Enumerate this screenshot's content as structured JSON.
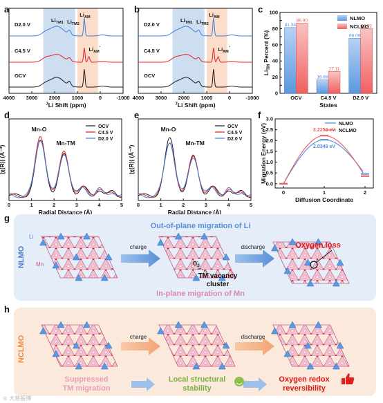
{
  "colors": {
    "nlmo": "#4a8fe0",
    "nclmo": "#f05a5a",
    "ocv": "#1a1a1a",
    "c45": "#e02020",
    "d20": "#3a7fe0",
    "panel_g_bg": "#e4edf8",
    "panel_h_bg": "#fbe9dc",
    "shade_blue": "#c5d8ef",
    "shade_orange": "#fad7c0"
  },
  "panels": {
    "a": "a",
    "b": "b",
    "c": "c",
    "d": "d",
    "e": "e",
    "f": "f",
    "g": "g",
    "h": "h"
  },
  "nmr": {
    "states": [
      "D2.0 V",
      "C4.5 V",
      "OCV"
    ],
    "xlabel_pre": "7",
    "xlabel": "Li Shift (ppm)",
    "xticks": [
      "4000",
      "3000",
      "2000",
      "1000",
      "0",
      "-1000"
    ],
    "labels": {
      "tm1": "Li",
      "tm1_sub": "TM1",
      "tm2": "Li",
      "tm2_sub": "TM2",
      "am": "Li",
      "am_sub": "AM",
      "am2": "Li",
      "am2_sub": "AM",
      "am2_sup": "'"
    }
  },
  "chart_data": [
    {
      "panel": "c",
      "type": "bar",
      "categories": [
        "OCV",
        "C4.5 V",
        "D2.0 V"
      ],
      "series": [
        {
          "name": "NLMO",
          "values": [
            81.34,
            16.69,
            68.09
          ]
        },
        {
          "name": "NCLMO",
          "values": [
            86.9,
            27.11,
            80.02
          ]
        }
      ],
      "value_labels": [
        [
          "81.34",
          "16.69",
          "68.09"
        ],
        [
          "86.90",
          "27.11",
          "80.02"
        ]
      ],
      "xlabel": "States",
      "ylabel_pre": "Li",
      "ylabel_sub": "TM",
      "ylabel_post": " Percent (%)",
      "ylim": [
        0,
        100
      ],
      "yticks": [
        "0",
        "10",
        "20",
        "30",
        "40",
        "50",
        "60",
        "70",
        "80",
        "90",
        "100"
      ],
      "legend": "top-right"
    },
    {
      "panel": "d",
      "type": "line",
      "series_names": [
        "OCV",
        "C4.5 V",
        "D2.0 V"
      ],
      "xlabel": "Radial Distance (Å)",
      "ylabel": "|χ(R)| (Å⁻³)",
      "xlim": [
        0,
        5
      ],
      "xticks": [
        "0",
        "1",
        "2",
        "3",
        "4",
        "5"
      ],
      "peaks": {
        "p1": "Mn-O",
        "p2": "Mn-TM"
      },
      "peak_heights": {
        "OCV": [
          0.82,
          0.62
        ],
        "C4.5 V": [
          0.9,
          0.68
        ],
        "D2.0 V": [
          0.86,
          0.65
        ]
      }
    },
    {
      "panel": "e",
      "type": "line",
      "series_names": [
        "OCV",
        "C4.5 V",
        "D2.0 V"
      ],
      "xlabel": "Radial Distance (Å)",
      "ylabel": "|χ(R)| (Å⁻³)",
      "xlim": [
        0,
        5
      ],
      "xticks": [
        "0",
        "1",
        "2",
        "3",
        "4",
        "5"
      ],
      "peaks": {
        "p1": "Mn-O",
        "p2": "Mn-TM"
      },
      "peak_heights": {
        "OCV": [
          0.86,
          0.58
        ],
        "C4.5 V": [
          0.8,
          0.62
        ],
        "D2.0 V": [
          0.83,
          0.6
        ]
      }
    },
    {
      "panel": "f",
      "type": "line",
      "series": [
        {
          "name": "NLMO",
          "x": [
            0,
            1,
            2
          ],
          "y": [
            0,
            2.0349,
            0.45
          ]
        },
        {
          "name": "NCLMO",
          "x": [
            0,
            1,
            2
          ],
          "y": [
            0,
            2.2253,
            0.35
          ]
        }
      ],
      "annotations": [
        "2.2253 eV",
        "2.0349 eV"
      ],
      "xlabel": "Diffusion Coordinate",
      "ylabel": "Migration Energy (eV)",
      "xticks": [
        "0",
        "1",
        "2"
      ],
      "yticks": [
        "0.0",
        "0.5",
        "1.0",
        "1.5",
        "2.0",
        "2.5",
        "3.0"
      ],
      "ylim": [
        -0.2,
        3.0
      ],
      "legend": "top-right"
    }
  ],
  "g": {
    "side": "NLMO",
    "title": "Out-of-plane migration of Li",
    "bottom": "In-plane migration of Mn",
    "li_label": "Li",
    "mn_label": "Mn",
    "charge": "charge",
    "discharge": "discharge",
    "oxygen_loss": "Oxygen loss",
    "o2": "O",
    "o2_sub": "2",
    "vacancy": "TM vacancy",
    "vacancy2": "cluster"
  },
  "h": {
    "side": "NCLMO",
    "charge": "charge",
    "discharge": "discharge",
    "t1a": "Suppressed",
    "t1b": "TM migration",
    "t2a": "Local structural",
    "t2b": "stability",
    "t3a": "Oxygen redox",
    "t3b": "reversibility"
  },
  "watermark": "⊙ 大慈股博"
}
